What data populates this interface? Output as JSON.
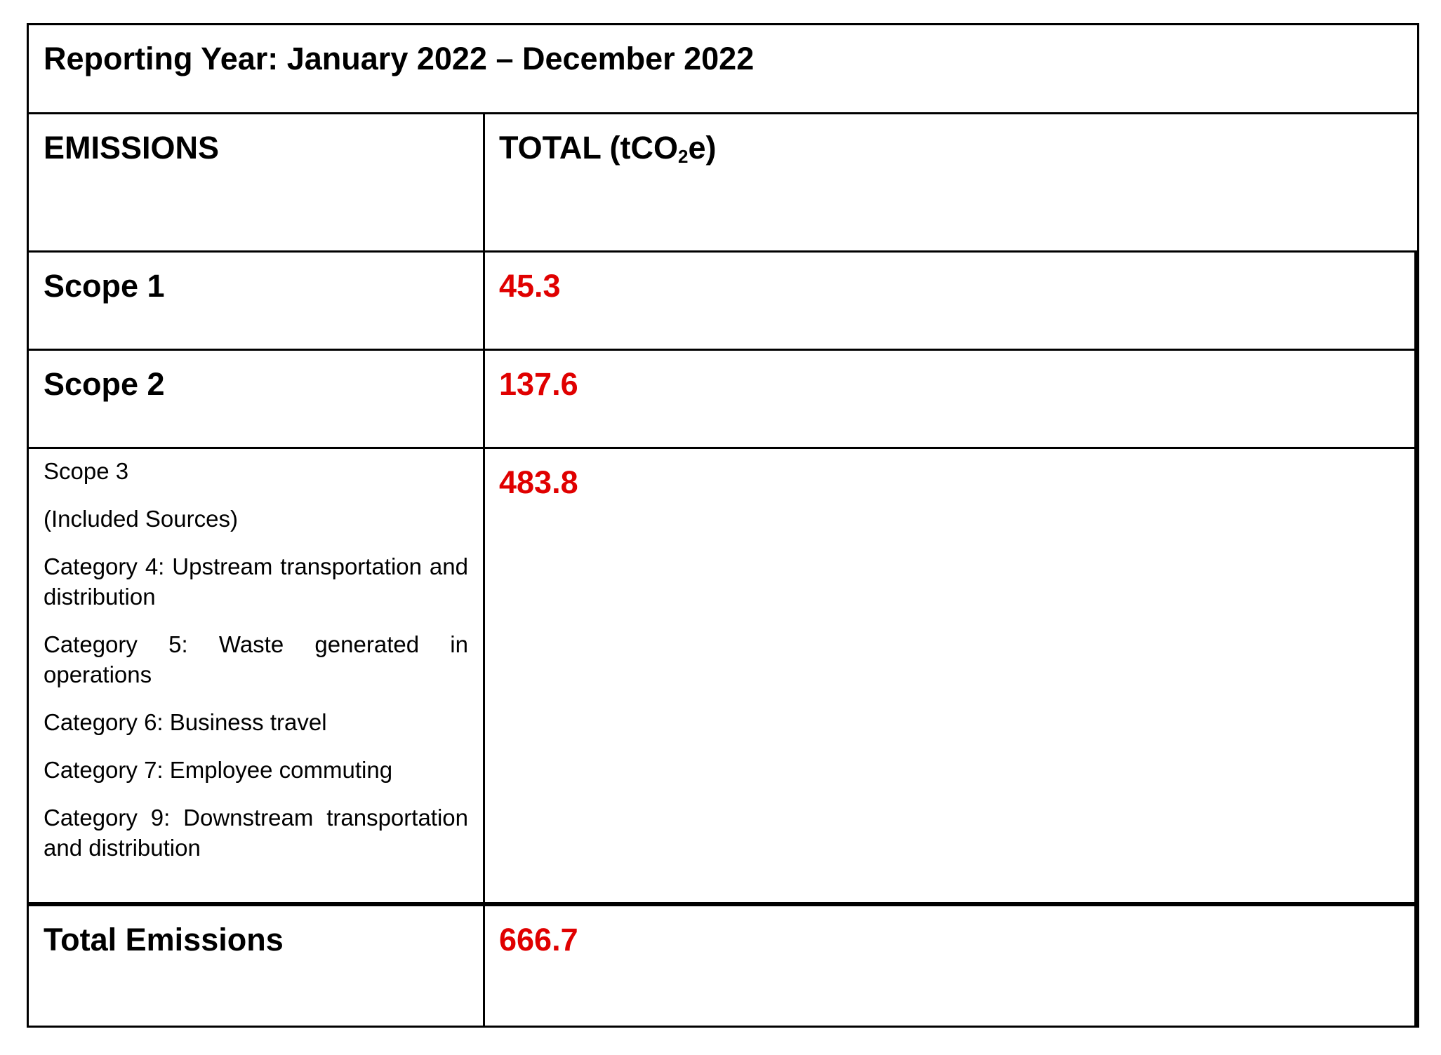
{
  "title": "Reporting Year: January 2022 – December 2022",
  "header": {
    "emissions_label": "EMISSIONS",
    "total_label_prefix": "TOTAL (tCO",
    "total_label_sub": "2",
    "total_label_suffix": "e)"
  },
  "rows": [
    {
      "label": "Scope 1",
      "value": "45.3"
    },
    {
      "label": "Scope 2",
      "value": "137.6"
    }
  ],
  "scope3": {
    "label": "Scope 3",
    "note": "(Included Sources)",
    "categories": [
      "Category 4: Upstream transportation and distribution",
      "Category 5: Waste generated in operations",
      "Category 6: Business travel",
      "Category 7: Employee commuting",
      "Category 9: Downstream transportation and distribution"
    ],
    "value": "483.8"
  },
  "total": {
    "label": "Total Emissions",
    "value": "666.7"
  },
  "colors": {
    "value_color": "#e00000",
    "border": "#000000"
  }
}
